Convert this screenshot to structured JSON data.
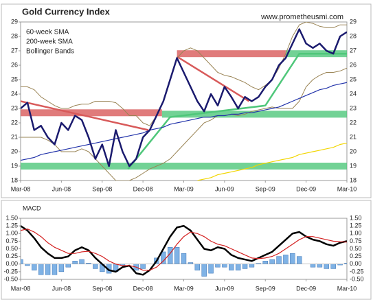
{
  "chart_data": [
    {
      "type": "line",
      "title": "Gold Currency Index",
      "source": "www.prometheusmi.com",
      "x": [
        0,
        0.5,
        1,
        1.5,
        2,
        2.5,
        3,
        3.5,
        4,
        4.5,
        5,
        5.5,
        6,
        6.5,
        7,
        7.5,
        8,
        8.5,
        9,
        9.5,
        10,
        10.5,
        11,
        11.5,
        12,
        12.5,
        13,
        13.5,
        14,
        14.5,
        15,
        15.5,
        16,
        16.5,
        17,
        17.5,
        18,
        18.5,
        19,
        19.5,
        20,
        20.5,
        21,
        21.5,
        22,
        22.5,
        23,
        23.5,
        24
      ],
      "xlim": [
        0,
        24
      ],
      "xticks": [
        {
          "value": 0,
          "label": "Mar-08"
        },
        {
          "value": 3,
          "label": "Jun-08"
        },
        {
          "value": 6,
          "label": "Sep-08"
        },
        {
          "value": 9,
          "label": "Dec-08"
        },
        {
          "value": 12,
          "label": "Mar-09"
        },
        {
          "value": 15,
          "label": "Jun-09"
        },
        {
          "value": 18,
          "label": "Sep-09"
        },
        {
          "value": 21,
          "label": "Dec-09"
        },
        {
          "value": 24,
          "label": "Mar-10"
        }
      ],
      "ylim": [
        18,
        29
      ],
      "yticks": [
        18,
        19,
        20,
        21,
        22,
        23,
        24,
        25,
        26,
        27,
        28,
        29
      ],
      "grid": false,
      "series": [
        {
          "color": "#1a1a6e",
          "width": 2.5,
          "values": [
            23.0,
            23.4,
            21.5,
            21.8,
            21.0,
            20.5,
            22.0,
            21.5,
            22.5,
            22.2,
            21.0,
            19.5,
            20.5,
            19.0,
            21.5,
            20.0,
            19.0,
            19.5,
            21.0,
            21.5,
            22.5,
            23.5,
            25.0,
            26.5,
            25.5,
            24.5,
            23.5,
            22.8,
            24.0,
            23.2,
            24.5,
            23.8,
            23.0,
            23.8,
            23.5,
            23.8,
            24.5,
            25.0,
            26.0,
            26.5,
            27.5,
            28.5,
            27.5,
            27.2,
            27.5,
            27.0,
            26.8,
            28.0,
            28.3
          ]
        },
        {
          "name": "60-week SMA",
          "color": "#2233aa",
          "width": 1.2,
          "values": [
            19.4,
            19.5,
            19.6,
            19.8,
            19.9,
            20.0,
            20.1,
            20.2,
            20.3,
            20.4,
            20.5,
            20.6,
            20.7,
            20.8,
            20.9,
            21.0,
            21.1,
            21.2,
            21.3,
            21.5,
            21.6,
            21.7,
            21.9,
            22.0,
            22.1,
            22.2,
            22.3,
            22.4,
            22.4,
            22.5,
            22.5,
            22.6,
            22.6,
            22.7,
            22.7,
            22.8,
            22.9,
            23.0,
            23.1,
            23.3,
            23.5,
            23.7,
            23.9,
            24.1,
            24.3,
            24.4,
            24.6,
            24.7,
            24.8
          ]
        },
        {
          "name": "200-week SMA",
          "color": "#f2d600",
          "width": 1.2,
          "values": [
            null,
            null,
            null,
            null,
            null,
            null,
            null,
            null,
            null,
            null,
            null,
            null,
            null,
            null,
            null,
            null,
            null,
            null,
            null,
            null,
            null,
            null,
            null,
            null,
            null,
            null,
            18.0,
            18.1,
            18.2,
            18.4,
            18.5,
            18.6,
            18.7,
            18.8,
            18.9,
            19.1,
            19.2,
            19.3,
            19.4,
            19.5,
            19.6,
            19.8,
            19.9,
            20.0,
            20.1,
            20.2,
            20.3,
            20.5,
            20.6
          ]
        }
      ],
      "bands": {
        "name": "Bollinger Bands",
        "color": "#9a8455",
        "upper": [
          24.5,
          24.5,
          24.3,
          23.8,
          23.5,
          23.2,
          23.0,
          23.0,
          23.2,
          23.3,
          23.3,
          23.5,
          23.5,
          23.5,
          23.4,
          23.0,
          22.5,
          22.5,
          22.0,
          21.8,
          22.5,
          23.5,
          25,
          26.5,
          27.0,
          27.2,
          27.0,
          26.5,
          26.0,
          25.5,
          25.3,
          25.2,
          25.0,
          24.8,
          24.5,
          24.3,
          24.6,
          25.0,
          25.8,
          26.8,
          28.0,
          28.8,
          29.0,
          28.9,
          28.7,
          28.6,
          28.6,
          28.8,
          28.8
        ],
        "lower": [
          21.0,
          21.0,
          21.0,
          21.0,
          20.8,
          20.5,
          20.0,
          20.0,
          20.0,
          20.2,
          20.0,
          19.5,
          19.0,
          18.5,
          18.0,
          18.0,
          18.0,
          18.2,
          18.5,
          18.8,
          19.0,
          19.2,
          19.5,
          20.0,
          20.5,
          21.0,
          21.5,
          22.0,
          22.2,
          22.5,
          22.5,
          22.6,
          22.5,
          22.6,
          22.8,
          22.9,
          23.0,
          23.1,
          23.0,
          23.0,
          23.0,
          23.5,
          24.5,
          25.0,
          25.3,
          25.5,
          25.5,
          25.6,
          25.8
        ]
      },
      "zones": [
        {
          "from": 0,
          "to": 10.4,
          "value": 22.7,
          "color": "#d85a5a"
        },
        {
          "from": 10.4,
          "to": 24,
          "value": 22.6,
          "color": "#4fc77a"
        },
        {
          "from": 0,
          "to": 24,
          "value": 19.0,
          "color": "#4fc77a"
        },
        {
          "from": 11.5,
          "to": 19.5,
          "value": 26.8,
          "color": "#d85a5a"
        },
        {
          "from": 19.5,
          "to": 24,
          "value": 26.8,
          "color": "#4fc77a"
        }
      ],
      "trendlines": [
        {
          "color": "#d85a5a",
          "x": [
            0,
            9.4
          ],
          "y": [
            23.5,
            21.5
          ]
        },
        {
          "color": "#d85a5a",
          "x": [
            11.5,
            16.8
          ],
          "y": [
            26.6,
            23.5
          ]
        },
        {
          "color": "#4fc77a",
          "x": [
            7.9,
            11,
            18,
            20.5,
            24
          ],
          "y": [
            18.8,
            22.4,
            23.2,
            26.8,
            26.8
          ]
        }
      ]
    },
    {
      "type": "line",
      "title": "MACD",
      "x": [
        0,
        0.5,
        1,
        1.5,
        2,
        2.5,
        3,
        3.5,
        4,
        4.5,
        5,
        5.5,
        6,
        6.5,
        7,
        7.5,
        8,
        8.5,
        9,
        9.5,
        10,
        10.5,
        11,
        11.5,
        12,
        12.5,
        13,
        13.5,
        14,
        14.5,
        15,
        15.5,
        16,
        16.5,
        17,
        17.5,
        18,
        18.5,
        19,
        19.5,
        20,
        20.5,
        21,
        21.5,
        22,
        22.5,
        23,
        23.5,
        24
      ],
      "xlim": [
        0,
        24
      ],
      "xticks": [
        {
          "value": 0,
          "label": "Mar-08"
        },
        {
          "value": 3,
          "label": "Jun-08"
        },
        {
          "value": 6,
          "label": "Sep-08"
        },
        {
          "value": 9,
          "label": "Dec-08"
        },
        {
          "value": 12,
          "label": "Mar-09"
        },
        {
          "value": 15,
          "label": "Jun-09"
        },
        {
          "value": 18,
          "label": "Sep-09"
        },
        {
          "value": 21,
          "label": "Dec-09"
        },
        {
          "value": 24,
          "label": "Mar-10"
        }
      ],
      "ylim": [
        -0.5,
        1.5
      ],
      "yticks": [
        {
          "value": -0.5,
          "label": "-0.50"
        },
        {
          "value": -0.25,
          "label": "-0.25"
        },
        {
          "value": 0,
          "label": "0.00"
        },
        {
          "value": 0.25,
          "label": "0.25"
        },
        {
          "value": 0.5,
          "label": "0.50"
        },
        {
          "value": 0.75,
          "label": "0.75"
        },
        {
          "value": 1,
          "label": "1.00"
        },
        {
          "value": 1.25,
          "label": "1.25"
        },
        {
          "value": 1.5,
          "label": "1.50"
        }
      ],
      "grid": false,
      "series": [
        {
          "kind": "bar",
          "color": "#7fb2e5",
          "values": [
            0.15,
            -0.05,
            -0.2,
            -0.35,
            -0.35,
            -0.35,
            -0.25,
            -0.1,
            0.1,
            0.15,
            0.03,
            -0.15,
            -0.25,
            -0.3,
            -0.25,
            -0.05,
            0.0,
            -0.2,
            -0.15,
            0.0,
            0.2,
            0.4,
            0.55,
            0.55,
            0.35,
            0.05,
            -0.2,
            -0.4,
            -0.3,
            -0.1,
            -0.1,
            -0.2,
            -0.2,
            -0.15,
            -0.1,
            0.02,
            0.1,
            0.15,
            0.25,
            0.3,
            0.35,
            0.25,
            0.0,
            -0.1,
            -0.1,
            -0.15,
            -0.15,
            -0.03,
            0.03
          ]
        },
        {
          "kind": "line",
          "color": "#000000",
          "width": 2.5,
          "values": [
            1.25,
            1.1,
            0.85,
            0.55,
            0.35,
            0.2,
            0.2,
            0.25,
            0.45,
            0.55,
            0.45,
            0.2,
            0.0,
            -0.2,
            -0.25,
            -0.1,
            -0.05,
            -0.3,
            -0.35,
            -0.2,
            0.1,
            0.5,
            0.9,
            1.2,
            1.25,
            1.1,
            0.8,
            0.5,
            0.45,
            0.55,
            0.5,
            0.3,
            0.2,
            0.15,
            0.1,
            0.2,
            0.3,
            0.4,
            0.6,
            0.8,
            1.0,
            1.05,
            0.9,
            0.8,
            0.75,
            0.65,
            0.6,
            0.7,
            0.75
          ]
        },
        {
          "kind": "line",
          "color": "#d42020",
          "width": 1.2,
          "values": [
            1.1,
            1.15,
            1.05,
            0.9,
            0.7,
            0.55,
            0.45,
            0.35,
            0.35,
            0.4,
            0.42,
            0.35,
            0.25,
            0.1,
            0.0,
            -0.05,
            -0.05,
            -0.1,
            -0.2,
            -0.2,
            -0.1,
            0.1,
            0.35,
            0.65,
            0.9,
            1.05,
            1.0,
            0.9,
            0.75,
            0.65,
            0.6,
            0.5,
            0.4,
            0.3,
            0.2,
            0.18,
            0.2,
            0.25,
            0.35,
            0.5,
            0.65,
            0.8,
            0.9,
            0.9,
            0.85,
            0.8,
            0.75,
            0.73,
            0.72
          ]
        }
      ]
    }
  ]
}
